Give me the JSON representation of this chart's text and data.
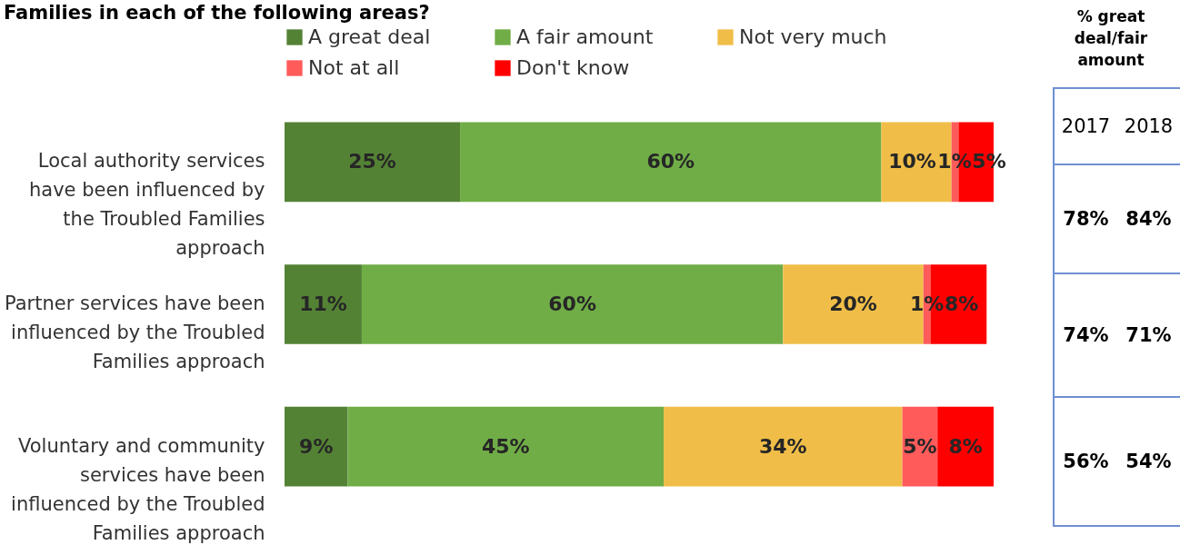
{
  "chart_data": {
    "type": "bar",
    "orientation": "horizontal",
    "stacked": true,
    "title": "Families in each of the following areas?",
    "categories": [
      "Local authority services have been influenced by the Troubled Families approach",
      "Partner services have been influenced by the Troubled Families approach",
      "Voluntary and community services have been influenced by the Troubled Families approach"
    ],
    "series": [
      {
        "name": "A great deal",
        "color": "#548235",
        "values": [
          25,
          11,
          9
        ],
        "value_labels": [
          "25%",
          "11%",
          "9%"
        ]
      },
      {
        "name": "A fair amount",
        "color": "#70ad47",
        "values": [
          60,
          60,
          45
        ],
        "value_labels": [
          "60%",
          "60%",
          "45%"
        ]
      },
      {
        "name": "Not very much",
        "color": "#f0be48",
        "values": [
          10,
          20,
          34
        ],
        "value_labels": [
          "10%",
          "20%",
          "34%"
        ]
      },
      {
        "name": "Not at all",
        "color": "#ff5b5b",
        "values": [
          1,
          1,
          5
        ],
        "value_labels": [
          "1%",
          "1%",
          "5%"
        ]
      },
      {
        "name": "Don't know",
        "color": "#ff0000",
        "values": [
          5,
          8,
          8
        ],
        "value_labels": [
          "5%",
          "8%",
          "8%"
        ]
      }
    ],
    "legend": "top",
    "tick_labels": "y",
    "annotations": [
      "% great deal/fair amount",
      "2017",
      "2018",
      "78%",
      "84%",
      "74%",
      "71%",
      "56%",
      "54%"
    ]
  }
}
